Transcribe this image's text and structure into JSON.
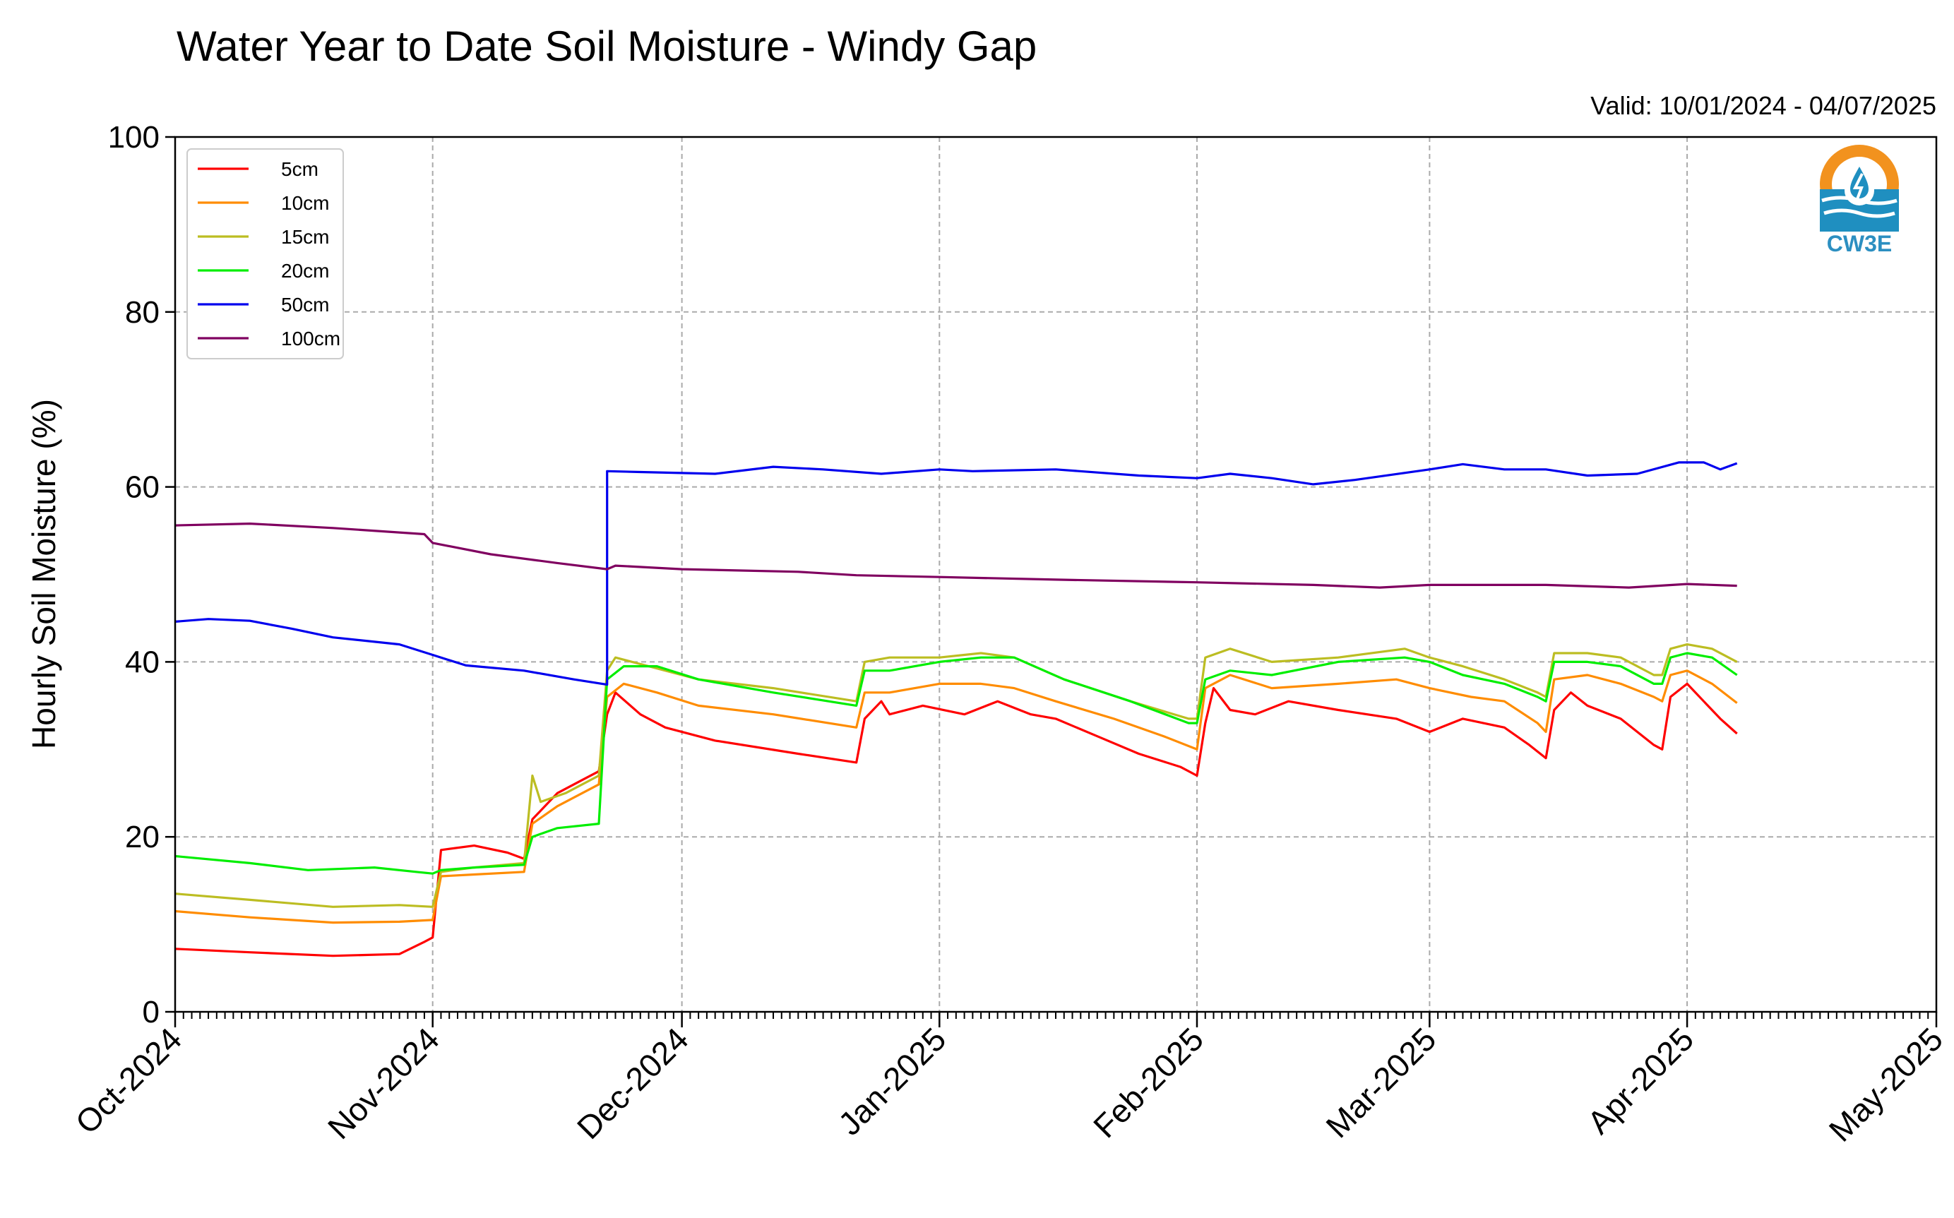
{
  "chart_data": {
    "type": "line",
    "title": "Water Year to Date Soil Moisture - Windy Gap",
    "subtitle": "Valid: 10/01/2024 - 04/07/2025",
    "xlabel": "",
    "ylabel": "Hourly Soil Moisture (%)",
    "x_type": "date",
    "xlim": [
      "2024-10-01",
      "2025-05-01"
    ],
    "ylim": [
      0,
      100
    ],
    "x_ticks": [
      {
        "date": "2024-10-01",
        "label": "Oct-2024"
      },
      {
        "date": "2024-11-01",
        "label": "Nov-2024"
      },
      {
        "date": "2024-12-01",
        "label": "Dec-2024"
      },
      {
        "date": "2025-01-01",
        "label": "Jan-2025"
      },
      {
        "date": "2025-02-01",
        "label": "Feb-2025"
      },
      {
        "date": "2025-03-01",
        "label": "Mar-2025"
      },
      {
        "date": "2025-04-01",
        "label": "Apr-2025"
      },
      {
        "date": "2025-05-01",
        "label": "May-2025"
      }
    ],
    "y_ticks": [
      0,
      20,
      40,
      60,
      80,
      100
    ],
    "grid": true,
    "legend": "top-left",
    "series": [
      {
        "name": "5cm",
        "color": "#ff0000",
        "points": [
          [
            "2024-10-01",
            7.2
          ],
          [
            "2024-10-10",
            6.8
          ],
          [
            "2024-10-20",
            6.4
          ],
          [
            "2024-10-28",
            6.6
          ],
          [
            "2024-10-31",
            8.0
          ],
          [
            "2024-11-01",
            8.5
          ],
          [
            "2024-11-02",
            18.5
          ],
          [
            "2024-11-06",
            19.0
          ],
          [
            "2024-11-10",
            18.2
          ],
          [
            "2024-11-12",
            17.5
          ],
          [
            "2024-11-13",
            22.0
          ],
          [
            "2024-11-16",
            25.0
          ],
          [
            "2024-11-19",
            26.5
          ],
          [
            "2024-11-21",
            27.5
          ],
          [
            "2024-11-22",
            34.0
          ],
          [
            "2024-11-23",
            36.5
          ],
          [
            "2024-11-26",
            34.0
          ],
          [
            "2024-11-29",
            32.5
          ],
          [
            "2024-12-05",
            31.0
          ],
          [
            "2024-12-15",
            29.5
          ],
          [
            "2024-12-22",
            28.5
          ],
          [
            "2024-12-23",
            33.5
          ],
          [
            "2024-12-25",
            35.5
          ],
          [
            "2024-12-26",
            34.0
          ],
          [
            "2024-12-30",
            35.0
          ],
          [
            "2025-01-04",
            34.0
          ],
          [
            "2025-01-08",
            35.5
          ],
          [
            "2025-01-12",
            34.0
          ],
          [
            "2025-01-15",
            33.5
          ],
          [
            "2025-01-20",
            31.5
          ],
          [
            "2025-01-25",
            29.5
          ],
          [
            "2025-01-30",
            28.0
          ],
          [
            "2025-02-01",
            27.0
          ],
          [
            "2025-02-02",
            33.0
          ],
          [
            "2025-02-03",
            37.0
          ],
          [
            "2025-02-05",
            34.5
          ],
          [
            "2025-02-08",
            34.0
          ],
          [
            "2025-02-12",
            35.5
          ],
          [
            "2025-02-18",
            34.5
          ],
          [
            "2025-02-25",
            33.5
          ],
          [
            "2025-03-01",
            32.0
          ],
          [
            "2025-03-05",
            33.5
          ],
          [
            "2025-03-10",
            32.5
          ],
          [
            "2025-03-13",
            30.5
          ],
          [
            "2025-03-15",
            29.0
          ],
          [
            "2025-03-16",
            34.5
          ],
          [
            "2025-03-18",
            36.5
          ],
          [
            "2025-03-20",
            35.0
          ],
          [
            "2025-03-24",
            33.5
          ],
          [
            "2025-03-28",
            30.5
          ],
          [
            "2025-03-29",
            30.0
          ],
          [
            "2025-03-30",
            36.0
          ],
          [
            "2025-04-01",
            37.5
          ],
          [
            "2025-04-03",
            35.5
          ],
          [
            "2025-04-05",
            33.5
          ],
          [
            "2025-04-07",
            31.8
          ]
        ]
      },
      {
        "name": "10cm",
        "color": "#ff8c00",
        "points": [
          [
            "2024-10-01",
            11.5
          ],
          [
            "2024-10-10",
            10.8
          ],
          [
            "2024-10-20",
            10.2
          ],
          [
            "2024-10-28",
            10.3
          ],
          [
            "2024-11-01",
            10.5
          ],
          [
            "2024-11-02",
            15.5
          ],
          [
            "2024-11-06",
            15.7
          ],
          [
            "2024-11-12",
            16.0
          ],
          [
            "2024-11-13",
            21.5
          ],
          [
            "2024-11-16",
            23.5
          ],
          [
            "2024-11-19",
            25.0
          ],
          [
            "2024-11-21",
            26.0
          ],
          [
            "2024-11-22",
            36.0
          ],
          [
            "2024-11-24",
            37.5
          ],
          [
            "2024-11-28",
            36.5
          ],
          [
            "2024-12-03",
            35.0
          ],
          [
            "2024-12-12",
            34.0
          ],
          [
            "2024-12-22",
            32.5
          ],
          [
            "2024-12-23",
            36.5
          ],
          [
            "2024-12-26",
            36.5
          ],
          [
            "2025-01-01",
            37.5
          ],
          [
            "2025-01-06",
            37.5
          ],
          [
            "2025-01-10",
            37.0
          ],
          [
            "2025-01-15",
            35.5
          ],
          [
            "2025-01-22",
            33.5
          ],
          [
            "2025-01-28",
            31.5
          ],
          [
            "2025-02-01",
            30.0
          ],
          [
            "2025-02-02",
            37.0
          ],
          [
            "2025-02-05",
            38.5
          ],
          [
            "2025-02-10",
            37.0
          ],
          [
            "2025-02-18",
            37.5
          ],
          [
            "2025-02-25",
            38.0
          ],
          [
            "2025-03-01",
            37.0
          ],
          [
            "2025-03-06",
            36.0
          ],
          [
            "2025-03-10",
            35.5
          ],
          [
            "2025-03-14",
            33.0
          ],
          [
            "2025-03-15",
            32.0
          ],
          [
            "2025-03-16",
            38.0
          ],
          [
            "2025-03-20",
            38.5
          ],
          [
            "2025-03-24",
            37.5
          ],
          [
            "2025-03-28",
            36.0
          ],
          [
            "2025-03-29",
            35.5
          ],
          [
            "2025-03-30",
            38.5
          ],
          [
            "2025-04-01",
            39.0
          ],
          [
            "2025-04-04",
            37.5
          ],
          [
            "2025-04-07",
            35.3
          ]
        ]
      },
      {
        "name": "15cm",
        "color": "#bcbd22",
        "points": [
          [
            "2024-10-01",
            13.5
          ],
          [
            "2024-10-10",
            12.8
          ],
          [
            "2024-10-20",
            12.0
          ],
          [
            "2024-10-28",
            12.2
          ],
          [
            "2024-11-01",
            12.0
          ],
          [
            "2024-11-02",
            16.0
          ],
          [
            "2024-11-06",
            16.5
          ],
          [
            "2024-11-12",
            17.0
          ],
          [
            "2024-11-13",
            27.0
          ],
          [
            "2024-11-14",
            24.0
          ],
          [
            "2024-11-17",
            25.0
          ],
          [
            "2024-11-21",
            27.0
          ],
          [
            "2024-11-22",
            39.0
          ],
          [
            "2024-11-23",
            40.5
          ],
          [
            "2024-11-27",
            39.5
          ],
          [
            "2024-12-03",
            38.0
          ],
          [
            "2024-12-12",
            37.0
          ],
          [
            "2024-12-22",
            35.5
          ],
          [
            "2024-12-23",
            40.0
          ],
          [
            "2024-12-26",
            40.5
          ],
          [
            "2025-01-01",
            40.5
          ],
          [
            "2025-01-06",
            41.0
          ],
          [
            "2025-01-10",
            40.5
          ],
          [
            "2025-01-16",
            38.0
          ],
          [
            "2025-01-24",
            35.5
          ],
          [
            "2025-01-31",
            33.5
          ],
          [
            "2025-02-01",
            33.5
          ],
          [
            "2025-02-02",
            40.5
          ],
          [
            "2025-02-05",
            41.5
          ],
          [
            "2025-02-10",
            40.0
          ],
          [
            "2025-02-18",
            40.5
          ],
          [
            "2025-02-26",
            41.5
          ],
          [
            "2025-03-01",
            40.5
          ],
          [
            "2025-03-05",
            39.5
          ],
          [
            "2025-03-10",
            38.0
          ],
          [
            "2025-03-14",
            36.5
          ],
          [
            "2025-03-15",
            36.0
          ],
          [
            "2025-03-16",
            41.0
          ],
          [
            "2025-03-20",
            41.0
          ],
          [
            "2025-03-24",
            40.5
          ],
          [
            "2025-03-28",
            38.5
          ],
          [
            "2025-03-29",
            38.5
          ],
          [
            "2025-03-30",
            41.5
          ],
          [
            "2025-04-01",
            42.0
          ],
          [
            "2025-04-04",
            41.5
          ],
          [
            "2025-04-07",
            40.0
          ]
        ]
      },
      {
        "name": "20cm",
        "color": "#00ee00",
        "points": [
          [
            "2024-10-01",
            17.8
          ],
          [
            "2024-10-10",
            17.0
          ],
          [
            "2024-10-17",
            16.2
          ],
          [
            "2024-10-25",
            16.5
          ],
          [
            "2024-10-30",
            16.0
          ],
          [
            "2024-11-01",
            15.8
          ],
          [
            "2024-11-02",
            16.2
          ],
          [
            "2024-11-06",
            16.5
          ],
          [
            "2024-11-12",
            16.8
          ],
          [
            "2024-11-13",
            20.0
          ],
          [
            "2024-11-16",
            21.0
          ],
          [
            "2024-11-21",
            21.5
          ],
          [
            "2024-11-22",
            38.0
          ],
          [
            "2024-11-24",
            39.5
          ],
          [
            "2024-11-28",
            39.5
          ],
          [
            "2024-12-03",
            38.0
          ],
          [
            "2024-12-12",
            36.5
          ],
          [
            "2024-12-22",
            35.0
          ],
          [
            "2024-12-23",
            39.0
          ],
          [
            "2024-12-26",
            39.0
          ],
          [
            "2025-01-01",
            40.0
          ],
          [
            "2025-01-06",
            40.5
          ],
          [
            "2025-01-10",
            40.5
          ],
          [
            "2025-01-16",
            38.0
          ],
          [
            "2025-01-24",
            35.5
          ],
          [
            "2025-01-31",
            33.0
          ],
          [
            "2025-02-01",
            33.0
          ],
          [
            "2025-02-02",
            38.0
          ],
          [
            "2025-02-05",
            39.0
          ],
          [
            "2025-02-10",
            38.5
          ],
          [
            "2025-02-18",
            40.0
          ],
          [
            "2025-02-26",
            40.5
          ],
          [
            "2025-03-01",
            40.0
          ],
          [
            "2025-03-05",
            38.5
          ],
          [
            "2025-03-10",
            37.5
          ],
          [
            "2025-03-14",
            36.0
          ],
          [
            "2025-03-15",
            35.5
          ],
          [
            "2025-03-16",
            40.0
          ],
          [
            "2025-03-20",
            40.0
          ],
          [
            "2025-03-24",
            39.5
          ],
          [
            "2025-03-28",
            37.5
          ],
          [
            "2025-03-29",
            37.5
          ],
          [
            "2025-03-30",
            40.5
          ],
          [
            "2025-04-01",
            41.0
          ],
          [
            "2025-04-04",
            40.5
          ],
          [
            "2025-04-07",
            38.5
          ]
        ]
      },
      {
        "name": "50cm",
        "color": "#0000ee",
        "points": [
          [
            "2024-10-01",
            44.6
          ],
          [
            "2024-10-05",
            44.9
          ],
          [
            "2024-10-10",
            44.7
          ],
          [
            "2024-10-15",
            43.8
          ],
          [
            "2024-10-20",
            42.8
          ],
          [
            "2024-10-28",
            42.0
          ],
          [
            "2024-11-01",
            40.8
          ],
          [
            "2024-11-05",
            39.6
          ],
          [
            "2024-11-12",
            39.0
          ],
          [
            "2024-11-18",
            38.0
          ],
          [
            "2024-11-22",
            37.4
          ],
          [
            "2024-11-22",
            61.8
          ],
          [
            "2024-11-26",
            61.7
          ],
          [
            "2024-12-05",
            61.5
          ],
          [
            "2024-12-12",
            62.3
          ],
          [
            "2024-12-18",
            62.0
          ],
          [
            "2024-12-25",
            61.5
          ],
          [
            "2025-01-01",
            62.0
          ],
          [
            "2025-01-05",
            61.8
          ],
          [
            "2025-01-15",
            62.0
          ],
          [
            "2025-01-25",
            61.3
          ],
          [
            "2025-02-01",
            61.0
          ],
          [
            "2025-02-05",
            61.5
          ],
          [
            "2025-02-10",
            61.0
          ],
          [
            "2025-02-15",
            60.3
          ],
          [
            "2025-02-20",
            60.8
          ],
          [
            "2025-03-01",
            62.0
          ],
          [
            "2025-03-05",
            62.6
          ],
          [
            "2025-03-10",
            62.0
          ],
          [
            "2025-03-15",
            62.0
          ],
          [
            "2025-03-20",
            61.3
          ],
          [
            "2025-03-26",
            61.5
          ],
          [
            "2025-03-31",
            62.8
          ],
          [
            "2025-04-03",
            62.8
          ],
          [
            "2025-04-05",
            62.0
          ],
          [
            "2025-04-07",
            62.7
          ]
        ]
      },
      {
        "name": "100cm",
        "color": "#800060",
        "points": [
          [
            "2024-10-01",
            55.6
          ],
          [
            "2024-10-10",
            55.8
          ],
          [
            "2024-10-20",
            55.3
          ],
          [
            "2024-10-31",
            54.6
          ],
          [
            "2024-11-01",
            53.6
          ],
          [
            "2024-11-08",
            52.3
          ],
          [
            "2024-11-16",
            51.3
          ],
          [
            "2024-11-22",
            50.6
          ],
          [
            "2024-11-23",
            51.0
          ],
          [
            "2024-12-01",
            50.6
          ],
          [
            "2024-12-15",
            50.3
          ],
          [
            "2024-12-22",
            49.9
          ],
          [
            "2025-01-01",
            49.7
          ],
          [
            "2025-01-15",
            49.4
          ],
          [
            "2025-02-01",
            49.1
          ],
          [
            "2025-02-15",
            48.8
          ],
          [
            "2025-02-23",
            48.5
          ],
          [
            "2025-03-01",
            48.8
          ],
          [
            "2025-03-15",
            48.8
          ],
          [
            "2025-03-25",
            48.5
          ],
          [
            "2025-04-01",
            48.9
          ],
          [
            "2025-04-07",
            48.7
          ]
        ]
      }
    ]
  },
  "logo": {
    "icon": "water-drop-logo-icon",
    "text": "CW3E",
    "colors": {
      "sun": "#f2921e",
      "water": "#1f8fc0",
      "text": "#2c8fc1"
    }
  }
}
